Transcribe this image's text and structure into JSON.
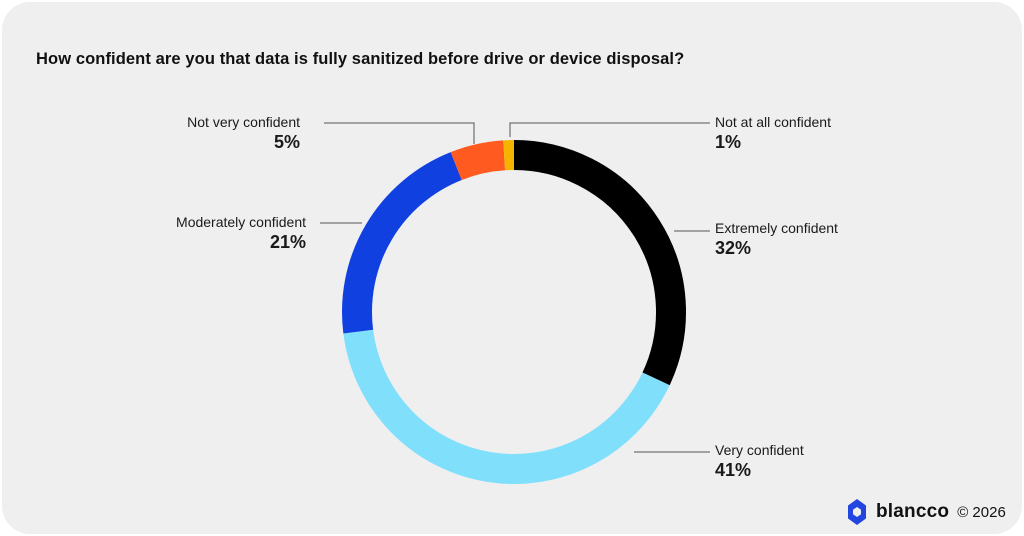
{
  "title": "How confident are you that data is fully sanitized before drive or device disposal?",
  "brand": {
    "name": "blancco",
    "copyright": "© 2026",
    "logo_icon": "blancco-logo-icon",
    "logo_color": "#2346e0"
  },
  "chart_data": {
    "type": "pie",
    "donut": true,
    "title": "How confident are you that data is fully sanitized before drive or device disposal?",
    "slices": [
      {
        "label": "Extremely confident",
        "value": 32,
        "display": "32%",
        "color": "#000000"
      },
      {
        "label": "Very confident",
        "value": 41,
        "display": "41%",
        "color": "#80e0fc"
      },
      {
        "label": "Moderately confident",
        "value": 21,
        "display": "21%",
        "color": "#1041e0"
      },
      {
        "label": "Not very confident",
        "value": 5,
        "display": "5%",
        "color": "#ff5a1f"
      },
      {
        "label": "Not at all confident",
        "value": 1,
        "display": "1%",
        "color": "#f5b400"
      }
    ],
    "start": "12 o'clock",
    "direction": "clockwise"
  }
}
